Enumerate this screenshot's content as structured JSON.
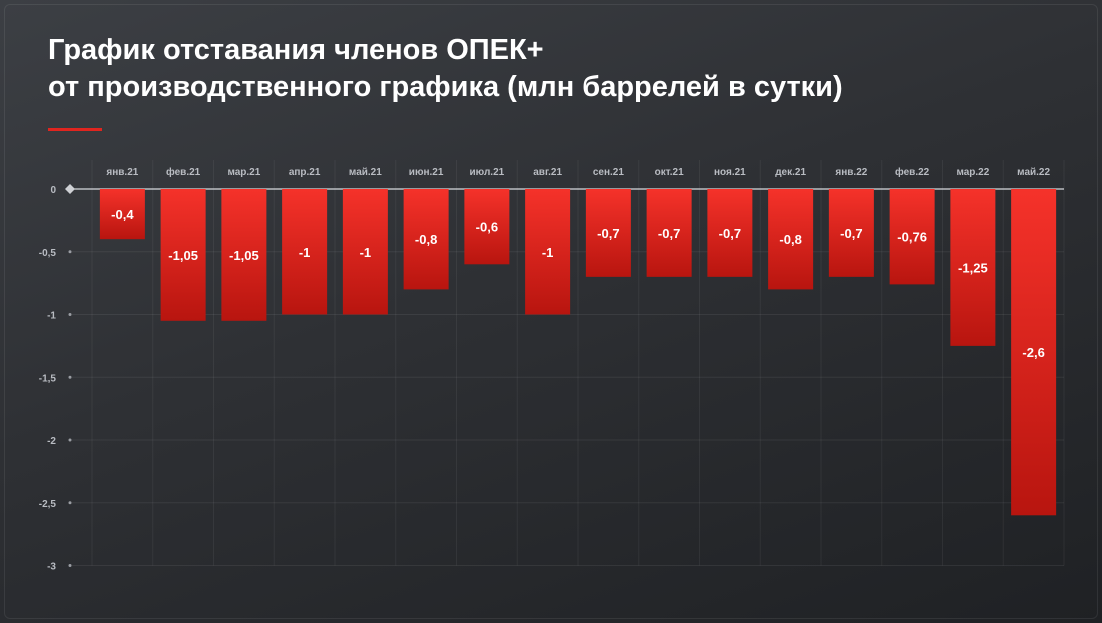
{
  "title": {
    "line1": "График отставания членов ОПЕК+",
    "line2": "от производственного графика (млн баррелей в сутки)"
  },
  "colors": {
    "bar_top": "#f5322a",
    "bar_bottom": "#b8150f",
    "accent": "#e0251f",
    "background": "#2e3034"
  },
  "chart_data": {
    "type": "bar",
    "categories": [
      "янв.21",
      "фев.21",
      "мар.21",
      "апр.21",
      "май.21",
      "июн.21",
      "июл.21",
      "авг.21",
      "сен.21",
      "окт.21",
      "ноя.21",
      "дек.21",
      "янв.22",
      "фев.22",
      "мар.22",
      "май.22"
    ],
    "values": [
      -0.4,
      -1.05,
      -1.05,
      -1,
      -1,
      -0.8,
      -0.6,
      -1,
      -0.7,
      -0.7,
      -0.7,
      -0.8,
      -0.7,
      -0.76,
      -1.25,
      -2.6
    ],
    "value_labels": [
      "-0,4",
      "-1,05",
      "-1,05",
      "-1",
      "-1",
      "-0,8",
      "-0,6",
      "-1",
      "-0,7",
      "-0,7",
      "-0,7",
      "-0,8",
      "-0,7",
      "-0,76",
      "-1,25",
      "-2,6"
    ],
    "y_ticks": [
      0,
      -0.5,
      -1,
      -1.5,
      -2,
      -2.5,
      -3
    ],
    "y_tick_labels": [
      "0",
      "-0,5",
      "-1",
      "-1,5",
      "-2",
      "-2,5",
      "-3"
    ],
    "ylim": [
      -3,
      0
    ],
    "x_axis_position": "top",
    "grid": true,
    "title": "График отставания членов ОПЕК+ от производственного графика (млн баррелей в сутки)",
    "xlabel": "",
    "ylabel": ""
  }
}
